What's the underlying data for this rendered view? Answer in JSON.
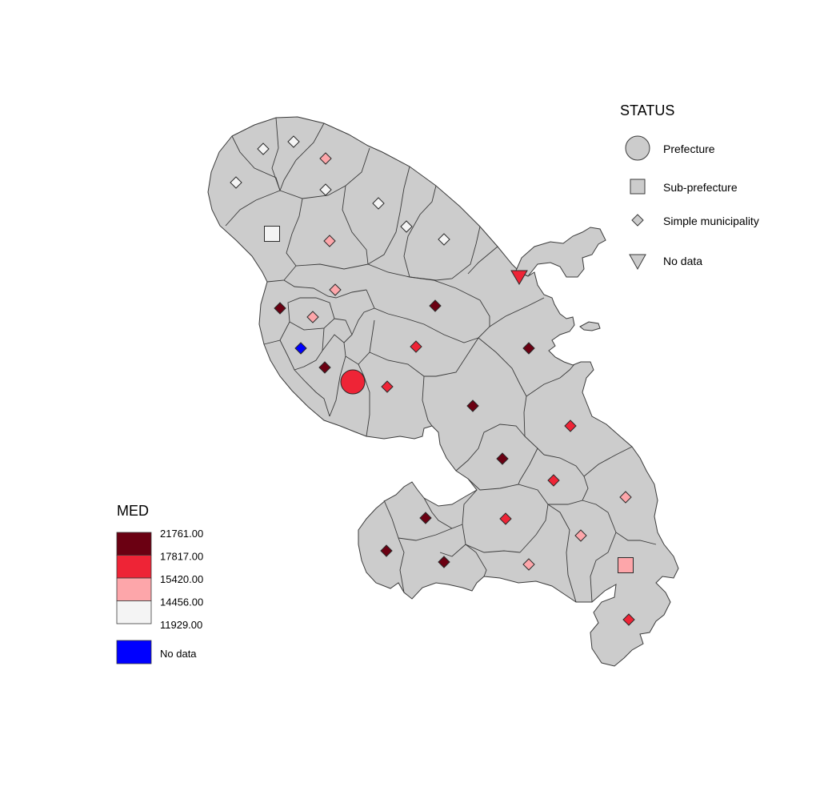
{
  "status_legend": {
    "title": "STATUS",
    "items": [
      {
        "shape": "circle",
        "label": "Prefecture"
      },
      {
        "shape": "square",
        "label": "Sub-prefecture"
      },
      {
        "shape": "diamond",
        "label": "Simple municipality"
      },
      {
        "shape": "triangle",
        "label": "No data"
      }
    ]
  },
  "med_legend": {
    "title": "MED",
    "breaks": [
      "21761.00",
      "17817.00",
      "15420.00",
      "14456.00",
      "11929.00"
    ],
    "classes": [
      {
        "color": "#6b0012"
      },
      {
        "color": "#ee2436"
      },
      {
        "color": "#fda6aa"
      },
      {
        "color": "#f4f4f4"
      }
    ],
    "nodata": {
      "color": "#0000ff",
      "label": "No data"
    }
  },
  "colors": {
    "map_fill": "#cccccc",
    "map_stroke": "#3a3a3a",
    "class_dark": "#6b0012",
    "class_red": "#ee2436",
    "class_pink": "#fda6aa",
    "class_white": "#f4f4f4",
    "nodata": "#0000ff"
  },
  "symbols": [
    {
      "status": "Simple municipality",
      "cls": "class_white"
    },
    {
      "status": "Simple municipality",
      "cls": "class_white"
    },
    {
      "status": "Simple municipality",
      "cls": "class_pink"
    },
    {
      "status": "Simple municipality",
      "cls": "class_white"
    },
    {
      "status": "Simple municipality",
      "cls": "class_white"
    },
    {
      "status": "Simple municipality",
      "cls": "class_white"
    },
    {
      "status": "Sub-prefecture",
      "cls": "class_white"
    },
    {
      "status": "Simple municipality",
      "cls": "class_white"
    },
    {
      "status": "Simple municipality",
      "cls": "class_pink"
    },
    {
      "status": "Simple municipality",
      "cls": "class_white"
    },
    {
      "status": "No data",
      "cls": "class_red"
    },
    {
      "status": "Simple municipality",
      "cls": "class_pink"
    },
    {
      "status": "Simple municipality",
      "cls": "class_dark"
    },
    {
      "status": "Simple municipality",
      "cls": "class_dark"
    },
    {
      "status": "Simple municipality",
      "cls": "class_pink"
    },
    {
      "status": "Simple municipality",
      "cls": "class_red"
    },
    {
      "status": "Simple municipality",
      "cls": "nodata"
    },
    {
      "status": "Simple municipality",
      "cls": "class_dark"
    },
    {
      "status": "Simple municipality",
      "cls": "class_dark"
    },
    {
      "status": "Prefecture",
      "cls": "class_red"
    },
    {
      "status": "Simple municipality",
      "cls": "class_red"
    },
    {
      "status": "Simple municipality",
      "cls": "class_dark"
    },
    {
      "status": "Simple municipality",
      "cls": "class_red"
    },
    {
      "status": "Simple municipality",
      "cls": "class_dark"
    },
    {
      "status": "Simple municipality",
      "cls": "class_red"
    },
    {
      "status": "Simple municipality",
      "cls": "class_pink"
    },
    {
      "status": "Simple municipality",
      "cls": "class_dark"
    },
    {
      "status": "Simple municipality",
      "cls": "class_red"
    },
    {
      "status": "Simple municipality",
      "cls": "class_pink"
    },
    {
      "status": "Simple municipality",
      "cls": "class_dark"
    },
    {
      "status": "Simple municipality",
      "cls": "class_dark"
    },
    {
      "status": "Simple municipality",
      "cls": "class_pink"
    },
    {
      "status": "Sub-prefecture",
      "cls": "class_pink"
    },
    {
      "status": "Simple municipality",
      "cls": "class_red"
    }
  ]
}
